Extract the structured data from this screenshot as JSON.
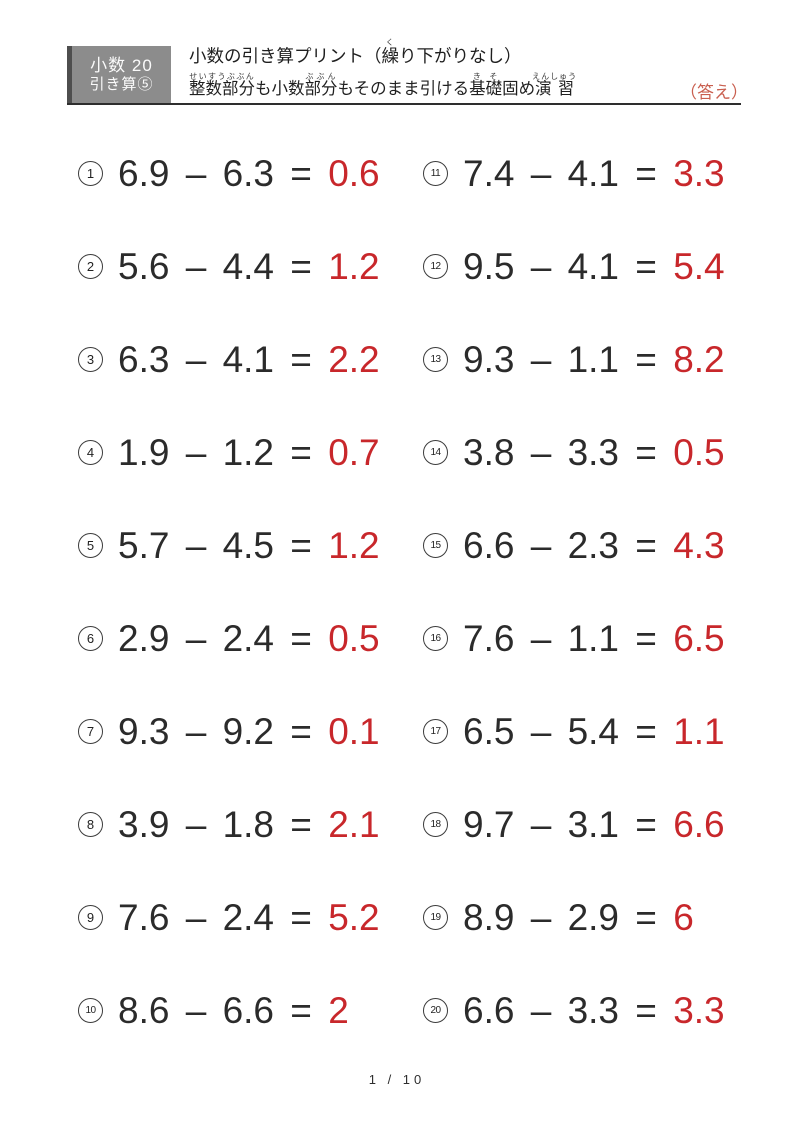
{
  "colors": {
    "text_black": "#2b2b2b",
    "answer_red": "#c8272b",
    "answer_label_red": "#c95f4f",
    "badge_bg": "#8c8c8c",
    "badge_accent": "#4e4e4e",
    "rule_color": "#2e2e2e"
  },
  "header": {
    "badge": {
      "line1": "小数 20",
      "line2": "引き算⑤"
    },
    "title_segments": [
      {
        "text": "小数の引き算プリント（"
      },
      {
        "text": "繰",
        "ruby": "く"
      },
      {
        "text": "り下がりなし）"
      }
    ],
    "subtitle_segments": [
      {
        "text": "整数部分",
        "ruby": "せいすうぶぶん"
      },
      {
        "text": "も小数"
      },
      {
        "text": "部分",
        "ruby": "ぶぶん"
      },
      {
        "text": "もそのまま引ける"
      },
      {
        "text": "基礎",
        "ruby": "きそ"
      },
      {
        "text": "固め"
      },
      {
        "text": "演習",
        "ruby": "えんしゅう"
      }
    ],
    "answer_label": "（答え）"
  },
  "symbols": {
    "minus": "–",
    "equals": "="
  },
  "problems": [
    {
      "num": 1,
      "minuend": "6.9",
      "subtrahend": "6.3",
      "answer": "0.6"
    },
    {
      "num": 2,
      "minuend": "5.6",
      "subtrahend": "4.4",
      "answer": "1.2"
    },
    {
      "num": 3,
      "minuend": "6.3",
      "subtrahend": "4.1",
      "answer": "2.2"
    },
    {
      "num": 4,
      "minuend": "1.9",
      "subtrahend": "1.2",
      "answer": "0.7"
    },
    {
      "num": 5,
      "minuend": "5.7",
      "subtrahend": "4.5",
      "answer": "1.2"
    },
    {
      "num": 6,
      "minuend": "2.9",
      "subtrahend": "2.4",
      "answer": "0.5"
    },
    {
      "num": 7,
      "minuend": "9.3",
      "subtrahend": "9.2",
      "answer": "0.1"
    },
    {
      "num": 8,
      "minuend": "3.9",
      "subtrahend": "1.8",
      "answer": "2.1"
    },
    {
      "num": 9,
      "minuend": "7.6",
      "subtrahend": "2.4",
      "answer": "5.2"
    },
    {
      "num": 10,
      "minuend": "8.6",
      "subtrahend": "6.6",
      "answer": "2"
    },
    {
      "num": 11,
      "minuend": "7.4",
      "subtrahend": "4.1",
      "answer": "3.3"
    },
    {
      "num": 12,
      "minuend": "9.5",
      "subtrahend": "4.1",
      "answer": "5.4"
    },
    {
      "num": 13,
      "minuend": "9.3",
      "subtrahend": "1.1",
      "answer": "8.2"
    },
    {
      "num": 14,
      "minuend": "3.8",
      "subtrahend": "3.3",
      "answer": "0.5"
    },
    {
      "num": 15,
      "minuend": "6.6",
      "subtrahend": "2.3",
      "answer": "4.3"
    },
    {
      "num": 16,
      "minuend": "7.6",
      "subtrahend": "1.1",
      "answer": "6.5"
    },
    {
      "num": 17,
      "minuend": "6.5",
      "subtrahend": "5.4",
      "answer": "1.1"
    },
    {
      "num": 18,
      "minuend": "9.7",
      "subtrahend": "3.1",
      "answer": "6.6"
    },
    {
      "num": 19,
      "minuend": "8.9",
      "subtrahend": "2.9",
      "answer": "6"
    },
    {
      "num": 20,
      "minuend": "6.6",
      "subtrahend": "3.3",
      "answer": "3.3"
    }
  ],
  "footer": {
    "page_indicator": "1 / 10"
  }
}
